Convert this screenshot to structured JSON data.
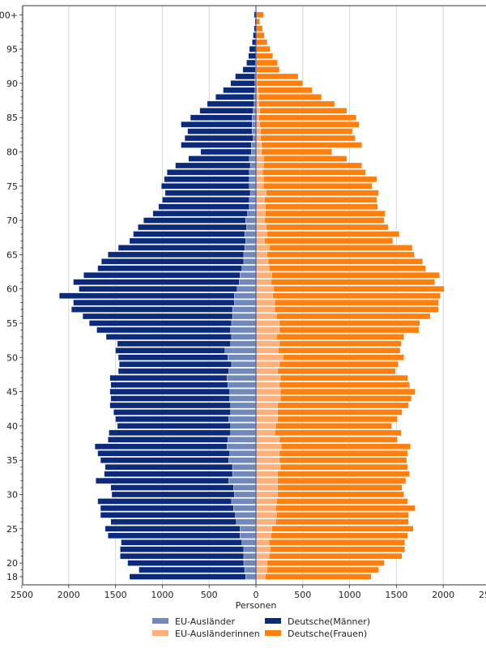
{
  "chart_data": {
    "type": "bar",
    "orientation": "horizontal-pyramid",
    "stacked": true,
    "xlabel": "Personen",
    "ylabel": "",
    "xlim": [
      -2500,
      2500
    ],
    "x_tick_values": [
      -2500,
      -2000,
      -1500,
      -1000,
      -500,
      0,
      500,
      1000,
      1500,
      2000,
      2500
    ],
    "x_tick_labels": [
      "2500",
      "2000",
      "1500",
      "1000",
      "500",
      "0",
      "500",
      "1000",
      "1500",
      "2000",
      "2500"
    ],
    "y_tick_ages": [
      18,
      20,
      25,
      30,
      35,
      40,
      45,
      50,
      55,
      60,
      65,
      70,
      75,
      80,
      85,
      90,
      95,
      100
    ],
    "y_tick_labels": [
      "18",
      "20",
      "25",
      "30",
      "35",
      "40",
      "45",
      "50",
      "55",
      "60",
      "65",
      "70",
      "75",
      "80",
      "85",
      "90",
      "95",
      "100+"
    ],
    "grid": "vertical",
    "legend_placement": "bottom-center",
    "ages_from": 18,
    "ages_to": 100,
    "series": [
      {
        "name": "EU-Ausländer",
        "side": "left",
        "color": "#7089ba",
        "values": [
          110,
          120,
          130,
          130,
          130,
          150,
          170,
          170,
          210,
          220,
          240,
          260,
          230,
          240,
          290,
          250,
          250,
          290,
          280,
          310,
          300,
          270,
          270,
          290,
          270,
          270,
          280,
          280,
          300,
          310,
          290,
          260,
          300,
          330,
          270,
          260,
          270,
          260,
          250,
          250,
          230,
          230,
          200,
          180,
          170,
          150,
          130,
          130,
          120,
          110,
          120,
          100,
          110,
          90,
          70,
          70,
          60,
          70,
          70,
          70,
          60,
          70,
          50,
          50,
          30,
          40,
          40,
          40,
          30,
          20,
          20,
          10,
          10,
          10,
          5,
          5,
          0,
          0,
          0,
          0,
          0,
          0,
          0
        ]
      },
      {
        "name": "Deutsche(Männer)",
        "side": "left",
        "color": "#0b2a7c",
        "values": [
          1240,
          1130,
          1240,
          1320,
          1320,
          1290,
          1410,
          1440,
          1340,
          1440,
          1420,
          1430,
          1310,
          1310,
          1420,
          1370,
          1360,
          1370,
          1410,
          1410,
          1280,
          1300,
          1210,
          1210,
          1250,
          1290,
          1270,
          1280,
          1250,
          1250,
          1180,
          1200,
          1170,
          1170,
          1210,
          1340,
          1430,
          1520,
          1600,
          1720,
          1720,
          1870,
          1690,
          1770,
          1670,
          1540,
          1520,
          1450,
          1350,
          1240,
          1190,
          1160,
          1090,
          1010,
          970,
          930,
          910,
          940,
          910,
          880,
          800,
          650,
          540,
          750,
          730,
          690,
          760,
          660,
          570,
          500,
          410,
          340,
          260,
          210,
          135,
          95,
          80,
          70,
          40,
          30,
          20,
          10,
          20
        ]
      },
      {
        "name": "EU-Ausländerinnen",
        "side": "right",
        "color": "#ffb07a",
        "values": [
          100,
          120,
          120,
          140,
          150,
          140,
          160,
          170,
          210,
          220,
          210,
          220,
          230,
          230,
          230,
          230,
          260,
          250,
          250,
          270,
          250,
          200,
          210,
          230,
          230,
          230,
          260,
          260,
          250,
          260,
          230,
          250,
          290,
          240,
          250,
          220,
          250,
          250,
          220,
          200,
          200,
          180,
          190,
          160,
          170,
          140,
          130,
          120,
          140,
          90,
          120,
          110,
          90,
          100,
          100,
          90,
          110,
          80,
          80,
          70,
          80,
          80,
          60,
          60,
          50,
          50,
          40,
          30,
          40,
          30,
          30,
          20,
          10,
          10,
          5,
          5,
          5,
          0,
          0,
          0,
          0,
          0,
          0
        ]
      },
      {
        "name": "Deutsche(Frauen)",
        "side": "right",
        "color": "#ff7f0e",
        "values": [
          1130,
          1190,
          1250,
          1420,
          1440,
          1450,
          1460,
          1510,
          1420,
          1410,
          1490,
          1400,
          1350,
          1330,
          1370,
          1410,
          1360,
          1360,
          1370,
          1380,
          1260,
          1350,
          1240,
          1280,
          1330,
          1400,
          1400,
          1440,
          1390,
          1360,
          1260,
          1270,
          1290,
          1300,
          1300,
          1360,
          1490,
          1500,
          1640,
          1750,
          1750,
          1790,
          1820,
          1750,
          1790,
          1670,
          1650,
          1570,
          1530,
          1370,
          1410,
          1300,
          1280,
          1280,
          1200,
          1200,
          1200,
          1160,
          1210,
          1100,
          1050,
          890,
          750,
          1070,
          1010,
          980,
          1060,
          1040,
          930,
          810,
          670,
          580,
          490,
          440,
          245,
          225,
          175,
          150,
          120,
          90,
          70,
          40,
          80
        ]
      }
    ]
  },
  "legend": {
    "items": [
      {
        "label": "EU-Ausländer",
        "color": "#7089ba"
      },
      {
        "label": "EU-Ausländerinnen",
        "color": "#ffb07a"
      },
      {
        "label": "Deutsche(Männer)",
        "color": "#0b2a7c"
      },
      {
        "label": "Deutsche(Frauen)",
        "color": "#ff7f0e"
      }
    ]
  }
}
